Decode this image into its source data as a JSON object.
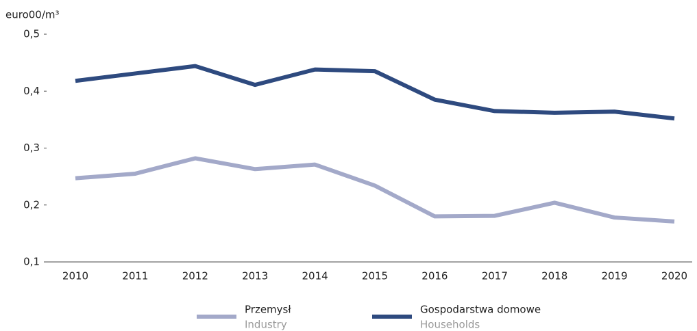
{
  "chart_data": {
    "type": "line",
    "ylabel": "euro00/m³",
    "categories": [
      "2010",
      "2011",
      "2012",
      "2013",
      "2014",
      "2015",
      "2016",
      "2017",
      "2018",
      "2019",
      "2020"
    ],
    "series": [
      {
        "name": "Przemysł",
        "subname": "Industry",
        "color": "#a3a9c9",
        "values": [
          0.247,
          0.255,
          0.282,
          0.263,
          0.271,
          0.234,
          0.18,
          0.181,
          0.204,
          0.178,
          0.171
        ]
      },
      {
        "name": "Gospodarstwa domowe",
        "subname": "Households",
        "color": "#2e4a7f",
        "values": [
          0.418,
          0.431,
          0.444,
          0.411,
          0.438,
          0.435,
          0.385,
          0.365,
          0.362,
          0.364,
          0.352
        ]
      }
    ],
    "ylim": [
      0.1,
      0.5
    ],
    "yticks": [
      {
        "value": 0.1,
        "label": "0,1"
      },
      {
        "value": 0.2,
        "label": "0,2"
      },
      {
        "value": 0.3,
        "label": "0,3"
      },
      {
        "value": 0.4,
        "label": "0,4"
      },
      {
        "value": 0.5,
        "label": "0,5"
      }
    ],
    "legend": "bottom"
  }
}
